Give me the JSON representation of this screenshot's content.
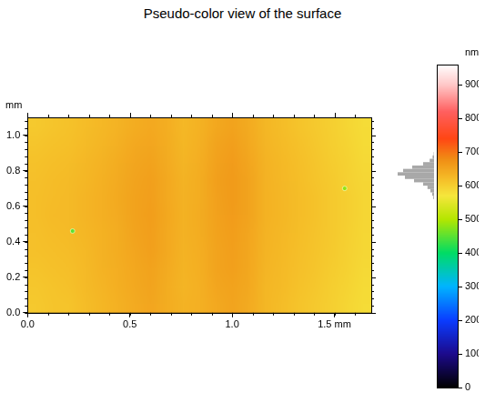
{
  "chart_data": {
    "type": "heatmap",
    "title": "Pseudo-color view of the surface",
    "y_label": "mm",
    "xlim": [
      0,
      1.68
    ],
    "ylim": [
      0,
      1.1
    ],
    "xticks": [
      {
        "value": 0,
        "label": "0.0"
      },
      0.5,
      {
        "value": 1,
        "label": "1.0"
      },
      {
        "value": 1.5,
        "label": "1.5 mm"
      }
    ],
    "yticks": [
      {
        "value": 0,
        "label": "0.0"
      },
      0.2,
      0.4,
      0.6,
      0.8,
      {
        "value": 1,
        "label": "1.0"
      }
    ],
    "grid": false,
    "cells": {
      "x": [
        0.04,
        0.12,
        0.2,
        0.28,
        0.36,
        0.44,
        0.52,
        0.6,
        0.68,
        0.76,
        0.84,
        0.92,
        1.0,
        1.08,
        1.16,
        1.24,
        1.32,
        1.4,
        1.48,
        1.56,
        1.64
      ],
      "y": [
        0.05,
        0.15,
        0.25,
        0.35,
        0.45,
        0.55,
        0.65,
        0.75,
        0.85,
        0.95,
        1.05
      ],
      "z": [
        [
          605,
          610,
          612,
          620,
          628,
          635,
          642,
          648,
          640,
          632,
          636,
          645,
          650,
          642,
          628,
          620,
          612,
          605,
          598,
          590,
          582
        ],
        [
          608,
          612,
          615,
          622,
          630,
          637,
          645,
          650,
          640,
          630,
          636,
          648,
          652,
          644,
          628,
          622,
          614,
          608,
          600,
          592,
          584
        ],
        [
          612,
          615,
          618,
          624,
          632,
          638,
          646,
          652,
          642,
          631,
          637,
          650,
          655,
          646,
          630,
          624,
          616,
          610,
          602,
          594,
          586
        ],
        [
          615,
          618,
          620,
          625,
          633,
          640,
          648,
          655,
          644,
          632,
          638,
          650,
          656,
          647,
          631,
          625,
          618,
          612,
          604,
          596,
          588
        ],
        [
          616,
          620,
          622,
          628,
          634,
          640,
          650,
          656,
          645,
          633,
          640,
          652,
          658,
          648,
          632,
          626,
          619,
          613,
          605,
          597,
          589
        ],
        [
          618,
          622,
          624,
          630,
          636,
          642,
          652,
          658,
          646,
          634,
          641,
          653,
          660,
          650,
          634,
          628,
          620,
          614,
          606,
          598,
          590
        ],
        [
          618,
          621,
          624,
          630,
          636,
          643,
          652,
          657,
          645,
          633,
          640,
          654,
          662,
          650,
          634,
          627,
          620,
          614,
          606,
          598,
          590
        ],
        [
          616,
          620,
          622,
          628,
          635,
          642,
          650,
          655,
          644,
          632,
          640,
          655,
          662,
          650,
          633,
          626,
          619,
          612,
          604,
          596,
          588
        ],
        [
          614,
          618,
          620,
          626,
          632,
          640,
          648,
          652,
          642,
          630,
          638,
          653,
          660,
          648,
          632,
          625,
          618,
          610,
          602,
          594,
          586
        ],
        [
          610,
          614,
          617,
          622,
          629,
          636,
          644,
          648,
          640,
          628,
          636,
          650,
          656,
          645,
          630,
          622,
          615,
          608,
          600,
          592,
          584
        ],
        [
          606,
          610,
          614,
          620,
          626,
          632,
          640,
          645,
          638,
          626,
          634,
          646,
          652,
          642,
          628,
          620,
          612,
          606,
          598,
          590,
          582
        ]
      ]
    },
    "spots": {
      "x": [
        0.22,
        1.55
      ],
      "y": [
        0.46,
        0.7
      ],
      "z": [
        450,
        480
      ]
    },
    "colorbar": {
      "label": "nm",
      "range": [
        0,
        960
      ],
      "ticks": [
        0,
        100,
        200,
        300,
        400,
        500,
        600,
        700,
        800,
        900
      ]
    },
    "histogram": {
      "bins": [
        560,
        570,
        580,
        590,
        600,
        610,
        620,
        630,
        640,
        650,
        660,
        670,
        680,
        690,
        700
      ],
      "counts": [
        2,
        5,
        10,
        18,
        30,
        55,
        80,
        100,
        85,
        60,
        30,
        12,
        4,
        1
      ]
    }
  }
}
